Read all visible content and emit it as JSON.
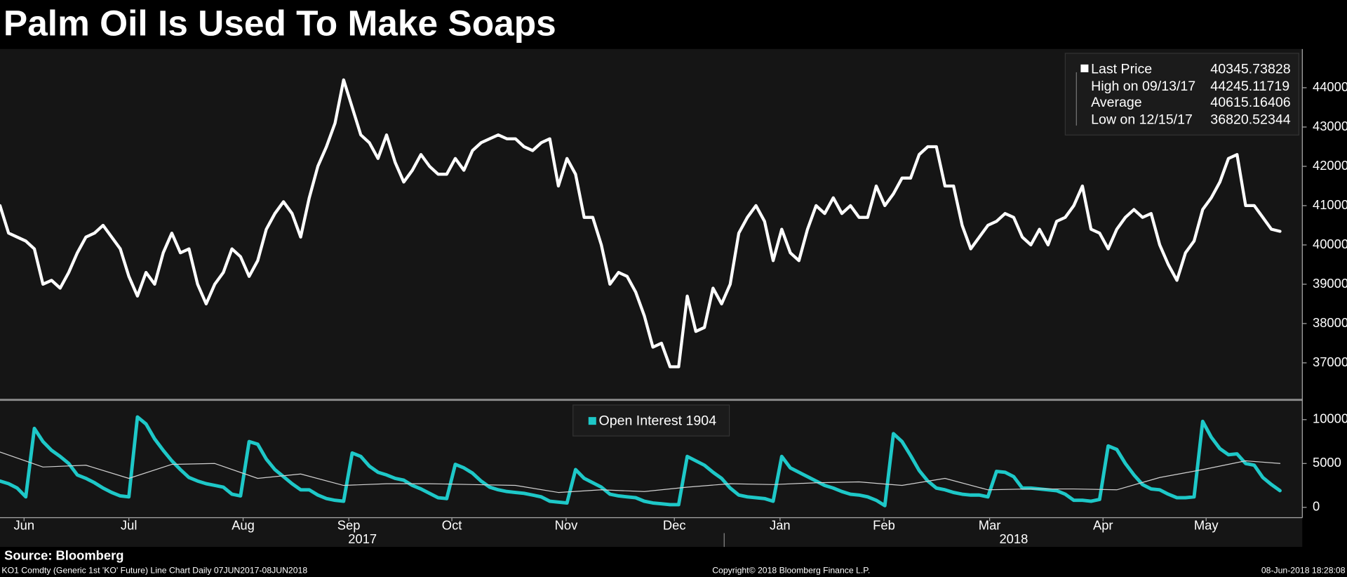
{
  "title": "Palm Oil Is Used To Make Soaps",
  "source": "Source: Bloomberg",
  "footer": {
    "left": "KO1 Comdty (Generic 1st 'KO' Future) Line Chart  Daily 07JUN2017-08JUN2018",
    "center": "Copyright© 2018 Bloomberg Finance L.P.",
    "right": "08-Jun-2018 18:28:08"
  },
  "chart_data": [
    {
      "type": "line",
      "xlim": [
        0,
        151.6
      ],
      "ylim": [
        36080,
        44985
      ],
      "yticks": [
        37000,
        38000,
        39000,
        40000,
        41000,
        42000,
        43000,
        44000
      ],
      "series": [
        {
          "name": "Last Price",
          "color": "#ffffff",
          "values": [
            41000,
            40300,
            40200,
            40100,
            39900,
            39000,
            39100,
            38900,
            39300,
            39800,
            40200,
            40300,
            40500,
            40200,
            39900,
            39200,
            38700,
            39300,
            39000,
            39800,
            40300,
            39800,
            39900,
            39000,
            38500,
            39000,
            39300,
            39900,
            39700,
            39200,
            39600,
            40400,
            40800,
            41100,
            40800,
            40200,
            41200,
            42000,
            42500,
            43100,
            44200,
            43500,
            42800,
            42600,
            42200,
            42800,
            42100,
            41600,
            41900,
            42300,
            42000,
            41800,
            41800,
            42200,
            41900,
            42400,
            42600,
            42700,
            42800,
            42700,
            42700,
            42500,
            42400,
            42600,
            42700,
            41500,
            42200,
            41800,
            40700,
            40700,
            40000,
            39000,
            39300,
            39200,
            38800,
            38200,
            37400,
            37500,
            36900,
            36900,
            38700,
            37800,
            37900,
            38900,
            38500,
            39000,
            40300,
            40700,
            41000,
            40600,
            39600,
            40400,
            39800,
            39600,
            40400,
            41000,
            40800,
            41200,
            40800,
            41000,
            40700,
            40700,
            41500,
            41000,
            41300,
            41700,
            41700,
            42300,
            42500,
            42500,
            41500,
            41500,
            40500,
            39900,
            40200,
            40500,
            40600,
            40800,
            40700,
            40200,
            40000,
            40400,
            40000,
            40600,
            40700,
            41000,
            41500,
            40400,
            40300,
            39900,
            40400,
            40700,
            40900,
            40700,
            40800,
            40000,
            39500,
            39100,
            39800,
            40100,
            40900,
            41200,
            41600,
            42200,
            42300,
            41000,
            41000,
            40700,
            40400,
            40345.73828
          ]
        }
      ],
      "stats": [
        {
          "label": "High on 09/13/17",
          "value": 44245.11719
        },
        {
          "label": "Average",
          "value": 40615.16406
        },
        {
          "label": "Low on 12/15/17",
          "value": 36820.52344
        }
      ]
    },
    {
      "type": "line",
      "xlim": [
        0,
        151.6
      ],
      "ylim": [
        -1176,
        12157
      ],
      "yticks": [
        0,
        5000,
        10000
      ],
      "xticks": [
        {
          "value": 2.8,
          "label": "Jun"
        },
        {
          "value": 15,
          "label": "Jul"
        },
        {
          "value": 28.3,
          "label": "Aug"
        },
        {
          "value": 40.6,
          "label": "Sep"
        },
        {
          "value": 52.6,
          "label": "Oct"
        },
        {
          "value": 65.9,
          "label": "Nov"
        },
        {
          "value": 78.5,
          "label": "Dec"
        },
        {
          "value": 90.8,
          "label": "Jan"
        },
        {
          "value": 102.9,
          "label": "Feb"
        },
        {
          "value": 115.2,
          "label": "Mar"
        },
        {
          "value": 128.4,
          "label": "Apr"
        },
        {
          "value": 140.4,
          "label": "May"
        }
      ],
      "years": [
        {
          "value": 42.2,
          "label": "2017"
        },
        {
          "value": 118,
          "label": "2018"
        }
      ],
      "year_break": 84.3,
      "series": [
        {
          "name": "Open Interest",
          "color": "#1ec8c8",
          "values": [
            3000,
            2700,
            2200,
            1200,
            9000,
            7500,
            6500,
            5800,
            5000,
            3700,
            3300,
            2800,
            2200,
            1700,
            1300,
            1200,
            10300,
            9500,
            7800,
            6500,
            5300,
            4300,
            3400,
            3000,
            2700,
            2500,
            2300,
            1500,
            1300,
            7500,
            7200,
            5500,
            4300,
            3500,
            2700,
            2000,
            2000,
            1400,
            1000,
            800,
            700,
            6200,
            5800,
            4700,
            4000,
            3700,
            3300,
            3100,
            2500,
            2100,
            1600,
            1100,
            1000,
            4900,
            4500,
            3900,
            3000,
            2300,
            2000,
            1800,
            1700,
            1600,
            1400,
            1200,
            700,
            600,
            500,
            4300,
            3300,
            2800,
            2300,
            1500,
            1300,
            1200,
            1100,
            700,
            500,
            400,
            300,
            300,
            5800,
            5300,
            4800,
            4000,
            3300,
            2200,
            1400,
            1200,
            1100,
            1000,
            700,
            5800,
            4500,
            4000,
            3500,
            3000,
            2500,
            2200,
            1800,
            1500,
            1400,
            1200,
            800,
            200,
            8400,
            7500,
            5900,
            4200,
            3000,
            2200,
            2000,
            1700,
            1500,
            1400,
            1400,
            1200,
            4100,
            4000,
            3500,
            2200,
            2200,
            2100,
            2000,
            1900,
            1500,
            800,
            800,
            700,
            900,
            7000,
            6600,
            5000,
            3700,
            2600,
            2100,
            2000,
            1500,
            1100,
            1100,
            1200,
            9800,
            8000,
            6700,
            6000,
            6100,
            5000,
            4800,
            3400,
            2600,
            1904
          ]
        },
        {
          "color": "#d0d0d0",
          "x": [
            0,
            5,
            10,
            15,
            20,
            25,
            30,
            35,
            40,
            45,
            50,
            55,
            60,
            65,
            70,
            75,
            80,
            85,
            90,
            95,
            100,
            105,
            110,
            115,
            120,
            125,
            130,
            135,
            140,
            145,
            149
          ],
          "values": [
            6300,
            4600,
            4800,
            3300,
            4900,
            5000,
            3300,
            3800,
            2500,
            2700,
            2700,
            2600,
            2500,
            1700,
            2000,
            1800,
            2300,
            2700,
            2600,
            2800,
            2900,
            2500,
            3300,
            2000,
            2100,
            2100,
            2000,
            3400,
            4300,
            5300,
            5000
          ]
        }
      ]
    }
  ]
}
